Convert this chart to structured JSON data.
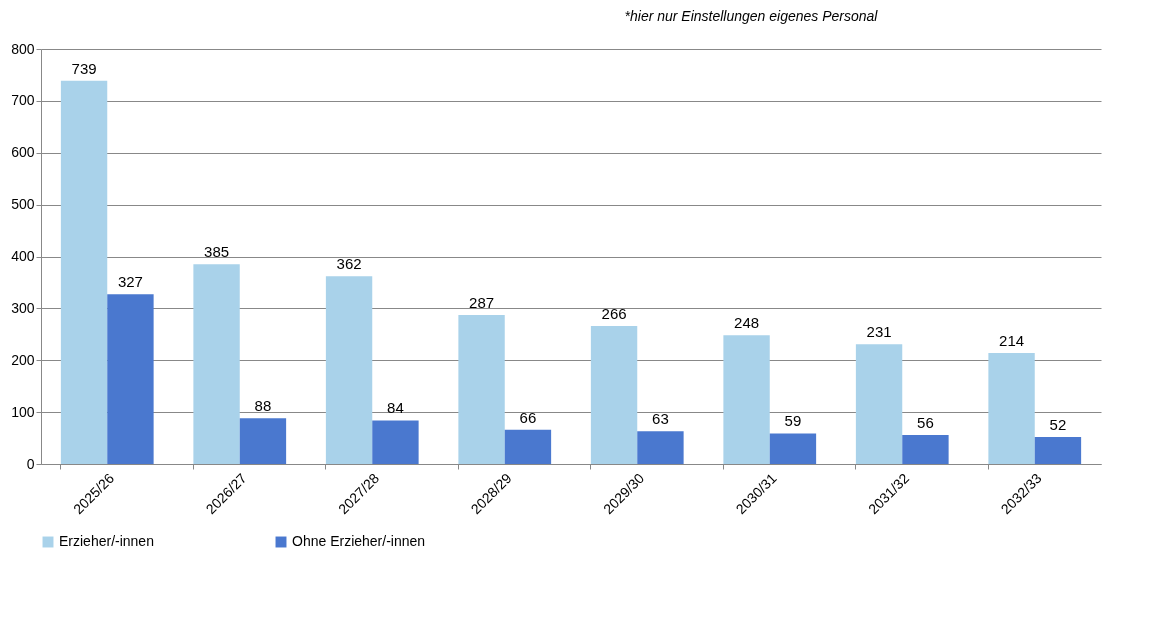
{
  "chart_data": {
    "type": "bar",
    "categories": [
      "2025/26",
      "2026/27",
      "2027/28",
      "2028/29",
      "2029/30",
      "2030/31",
      "2031/32",
      "2032/33"
    ],
    "series": [
      {
        "name": "Erzieher/-innen",
        "color": "#a9d2ea",
        "values": [
          739,
          385,
          362,
          287,
          266,
          248,
          231,
          214
        ]
      },
      {
        "name": "Ohne Erzieher/-innen",
        "color": "#4a78cf",
        "values": [
          327,
          88,
          84,
          66,
          63,
          59,
          56,
          52
        ]
      }
    ],
    "ylim": [
      0,
      800
    ],
    "yticks": [
      0,
      100,
      200,
      300,
      400,
      500,
      600,
      700,
      800
    ],
    "grid": "y",
    "legend": "bottom",
    "data_labels": true,
    "annotations": [
      "*hier nur Einstellungen eigenes Personal"
    ]
  }
}
